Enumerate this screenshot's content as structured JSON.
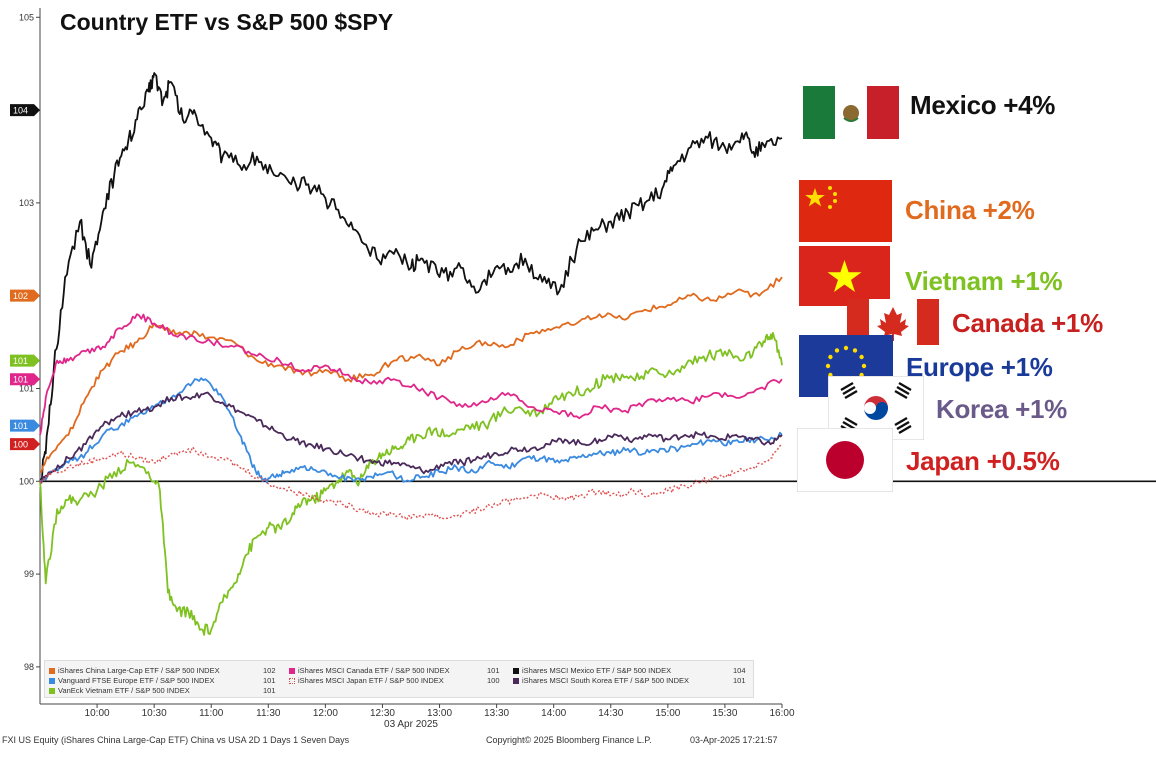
{
  "chart_data": {
    "type": "line",
    "title": "Country ETF vs S&P 500 $SPY",
    "xlabel": "03 Apr 2025",
    "ylabel": "",
    "x_ticks": [
      "10:00",
      "10:30",
      "11:00",
      "11:30",
      "12:00",
      "12:30",
      "13:00",
      "13:30",
      "14:00",
      "14:30",
      "15:00",
      "15:30",
      "16:00"
    ],
    "y_ticks": [
      "98",
      "99",
      "100",
      "101",
      "102",
      "103",
      "104",
      "105"
    ],
    "xlim": [
      9.5,
      16.0
    ],
    "ylim": [
      97.6,
      105.1
    ],
    "baseline": 100,
    "series": [
      {
        "name": "iShares MSCI Mexico ETF / S&P 500 INDEX",
        "value_label": "104",
        "color": "#111111",
        "dashed": false,
        "x": [
          9.5,
          9.55,
          9.62,
          9.72,
          9.85,
          9.95,
          10.05,
          10.15,
          10.25,
          10.35,
          10.45,
          10.5,
          10.58,
          10.65,
          10.75,
          10.85,
          11.0,
          11.1,
          11.25,
          11.4,
          11.55,
          11.7,
          11.85,
          12.0,
          12.15,
          12.3,
          12.45,
          12.6,
          12.75,
          12.85,
          13.0,
          13.15,
          13.3,
          13.45,
          13.6,
          13.75,
          13.9,
          14.05,
          14.2,
          14.35,
          14.5,
          14.65,
          14.8,
          14.95,
          15.05,
          15.2,
          15.35,
          15.5,
          15.65,
          15.75,
          15.85,
          16.0
        ],
        "y": [
          100.0,
          100.3,
          101.2,
          102.2,
          102.8,
          102.3,
          102.9,
          103.3,
          103.6,
          103.9,
          104.2,
          104.4,
          104.1,
          104.3,
          103.9,
          104.0,
          103.7,
          103.5,
          103.4,
          103.5,
          103.3,
          103.2,
          103.2,
          103.05,
          102.85,
          102.65,
          102.4,
          102.45,
          102.3,
          102.4,
          102.2,
          102.3,
          102.1,
          102.2,
          102.3,
          102.4,
          102.15,
          102.05,
          102.5,
          102.7,
          102.8,
          102.9,
          103.0,
          103.15,
          103.4,
          103.6,
          103.7,
          103.6,
          103.75,
          103.55,
          103.6,
          103.7
        ]
      },
      {
        "name": "iShares China Large-Cap ETF / S&P 500 INDEX",
        "value_label": "102",
        "color": "#e06a1d",
        "dashed": false,
        "x": [
          9.5,
          9.6,
          9.75,
          9.9,
          10.05,
          10.2,
          10.35,
          10.5,
          10.65,
          10.8,
          11.0,
          11.2,
          11.4,
          11.6,
          11.8,
          12.0,
          12.2,
          12.4,
          12.6,
          12.8,
          13.0,
          13.2,
          13.4,
          13.6,
          13.8,
          14.0,
          14.2,
          14.4,
          14.6,
          14.8,
          15.0,
          15.2,
          15.4,
          15.6,
          15.8,
          16.0
        ],
        "y": [
          100.1,
          100.3,
          100.5,
          100.9,
          101.2,
          101.4,
          101.5,
          101.7,
          101.6,
          101.6,
          101.55,
          101.5,
          101.3,
          101.25,
          101.15,
          101.2,
          101.1,
          101.15,
          101.3,
          101.35,
          101.25,
          101.45,
          101.5,
          101.45,
          101.6,
          101.65,
          101.7,
          101.8,
          101.75,
          101.85,
          101.9,
          102.0,
          101.95,
          102.05,
          102.0,
          102.2
        ]
      },
      {
        "name": "VanEck Vietnam ETF / S&P 500 INDEX",
        "value_label": "101",
        "color": "#7ec120",
        "dashed": false,
        "x": [
          9.5,
          9.55,
          9.65,
          9.75,
          9.85,
          10.0,
          10.15,
          10.3,
          10.45,
          10.55,
          10.62,
          10.7,
          10.8,
          10.9,
          11.0,
          11.1,
          11.2,
          11.3,
          11.4,
          11.5,
          11.6,
          11.7,
          11.8,
          11.9,
          12.0,
          12.1,
          12.2,
          12.3,
          12.4,
          12.5,
          12.6,
          12.7,
          12.8,
          12.95,
          13.1,
          13.25,
          13.4,
          13.55,
          13.7,
          13.85,
          14.0,
          14.15,
          14.3,
          14.45,
          14.6,
          14.75,
          14.9,
          15.05,
          15.2,
          15.35,
          15.5,
          15.65,
          15.75,
          15.85,
          15.92,
          16.0
        ],
        "y": [
          100.0,
          98.9,
          99.7,
          99.8,
          99.8,
          99.9,
          100.1,
          100.2,
          100.1,
          99.9,
          98.8,
          98.6,
          98.6,
          98.4,
          98.4,
          98.7,
          98.9,
          99.2,
          99.4,
          99.5,
          99.5,
          99.6,
          99.8,
          99.8,
          99.9,
          100.0,
          100.1,
          100.0,
          100.2,
          100.3,
          100.35,
          100.4,
          100.5,
          100.55,
          100.5,
          100.6,
          100.6,
          100.75,
          100.8,
          100.7,
          100.9,
          100.95,
          101.0,
          101.1,
          101.15,
          101.1,
          101.2,
          101.15,
          101.3,
          101.35,
          101.4,
          101.3,
          101.4,
          101.5,
          101.6,
          101.25
        ]
      },
      {
        "name": "iShares MSCI Canada ETF / S&P 500 INDEX",
        "value_label": "101",
        "color": "#e0268a",
        "dashed": false,
        "x": [
          9.5,
          9.55,
          9.65,
          9.75,
          9.9,
          10.05,
          10.2,
          10.35,
          10.5,
          10.65,
          10.8,
          11.0,
          11.2,
          11.4,
          11.6,
          11.8,
          12.0,
          12.2,
          12.4,
          12.6,
          12.8,
          13.0,
          13.2,
          13.4,
          13.6,
          13.8,
          14.0,
          14.2,
          14.4,
          14.6,
          14.8,
          15.0,
          15.2,
          15.4,
          15.6,
          15.8,
          16.0
        ],
        "y": [
          100.5,
          100.9,
          101.3,
          101.3,
          101.4,
          101.45,
          101.65,
          101.8,
          101.7,
          101.6,
          101.55,
          101.5,
          101.45,
          101.35,
          101.3,
          101.2,
          101.25,
          101.15,
          101.05,
          101.1,
          101.0,
          100.9,
          100.8,
          100.85,
          100.95,
          100.8,
          100.75,
          100.7,
          100.8,
          100.75,
          100.85,
          100.9,
          100.85,
          100.95,
          100.9,
          101.0,
          101.1
        ]
      },
      {
        "name": "Vanguard FTSE Europe ETF / S&P 500 INDEX",
        "value_label": "101",
        "color": "#3a8ae0",
        "dashed": false,
        "x": [
          9.5,
          9.6,
          9.75,
          9.9,
          10.05,
          10.2,
          10.35,
          10.5,
          10.65,
          10.8,
          10.95,
          11.1,
          11.25,
          11.35,
          11.45,
          11.55,
          11.65,
          11.8,
          11.95,
          12.1,
          12.25,
          12.4,
          12.55,
          12.7,
          12.85,
          13.0,
          13.15,
          13.3,
          13.45,
          13.6,
          13.75,
          13.9,
          14.05,
          14.2,
          14.35,
          14.5,
          14.65,
          14.8,
          14.95,
          15.1,
          15.25,
          15.4,
          15.55,
          15.7,
          15.85,
          16.0
        ],
        "y": [
          100.0,
          100.1,
          100.2,
          100.3,
          100.5,
          100.6,
          100.7,
          100.8,
          100.9,
          101.05,
          101.1,
          100.9,
          100.5,
          100.2,
          100.0,
          100.05,
          100.1,
          100.15,
          100.1,
          100.05,
          100.0,
          100.05,
          100.1,
          100.0,
          100.05,
          100.1,
          100.15,
          100.1,
          100.2,
          100.15,
          100.25,
          100.25,
          100.2,
          100.25,
          100.3,
          100.3,
          100.35,
          100.3,
          100.35,
          100.35,
          100.4,
          100.45,
          100.4,
          100.45,
          100.45,
          100.5
        ]
      },
      {
        "name": "iShares MSCI South Korea ETF / S&P 500 INDEX",
        "value_label": "101",
        "color": "#4a2a5a",
        "dashed": false,
        "x": [
          9.5,
          9.6,
          9.75,
          9.9,
          10.05,
          10.2,
          10.35,
          10.5,
          10.65,
          10.8,
          10.95,
          11.1,
          11.25,
          11.4,
          11.55,
          11.7,
          11.85,
          12.0,
          12.15,
          12.3,
          12.45,
          12.6,
          12.75,
          12.9,
          13.05,
          13.2,
          13.35,
          13.5,
          13.65,
          13.8,
          13.95,
          14.1,
          14.25,
          14.4,
          14.55,
          14.7,
          14.85,
          15.0,
          15.15,
          15.3,
          15.45,
          15.6,
          15.75,
          15.9,
          16.0
        ],
        "y": [
          100.0,
          100.1,
          100.25,
          100.4,
          100.6,
          100.7,
          100.75,
          100.8,
          100.9,
          100.9,
          100.95,
          100.85,
          100.75,
          100.65,
          100.55,
          100.45,
          100.4,
          100.35,
          100.3,
          100.25,
          100.2,
          100.2,
          100.15,
          100.1,
          100.2,
          100.2,
          100.25,
          100.3,
          100.35,
          100.35,
          100.4,
          100.45,
          100.4,
          100.45,
          100.5,
          100.45,
          100.5,
          100.45,
          100.5,
          100.5,
          100.45,
          100.5,
          100.45,
          100.4,
          100.5
        ]
      },
      {
        "name": "iShares MSCI Japan ETF / S&P 500 INDEX",
        "value_label": "100",
        "color": "#e05050",
        "dashed": true,
        "x": [
          9.5,
          9.6,
          9.75,
          9.9,
          10.05,
          10.2,
          10.35,
          10.5,
          10.65,
          10.8,
          10.95,
          11.1,
          11.25,
          11.4,
          11.55,
          11.7,
          11.85,
          12.0,
          12.15,
          12.3,
          12.45,
          12.6,
          12.75,
          12.9,
          13.05,
          13.2,
          13.35,
          13.5,
          13.65,
          13.8,
          13.95,
          14.1,
          14.25,
          14.4,
          14.55,
          14.7,
          14.85,
          15.0,
          15.15,
          15.3,
          15.45,
          15.6,
          15.75,
          15.9,
          16.0
        ],
        "y": [
          100.0,
          100.1,
          100.15,
          100.2,
          100.25,
          100.3,
          100.25,
          100.2,
          100.3,
          100.35,
          100.3,
          100.25,
          100.15,
          100.05,
          99.95,
          99.9,
          99.85,
          99.8,
          99.75,
          99.7,
          99.65,
          99.65,
          99.6,
          99.65,
          99.6,
          99.65,
          99.7,
          99.75,
          99.8,
          99.85,
          99.85,
          99.8,
          99.85,
          99.9,
          99.85,
          99.9,
          99.85,
          99.9,
          99.95,
          100.0,
          100.05,
          100.1,
          100.15,
          100.25,
          100.4
        ]
      }
    ]
  },
  "annotations": [
    {
      "label": "Mexico +4%",
      "color": "#111111"
    },
    {
      "label": "China +2%",
      "color": "#e06a1d"
    },
    {
      "label": "Vietnam +1%",
      "color": "#7ec120"
    },
    {
      "label": "Canada +1%",
      "color": "#c8201e"
    },
    {
      "label": "Europe +1%",
      "color": "#1a3a9a"
    },
    {
      "label": "Korea +1%",
      "color": "#6a5a8a"
    },
    {
      "label": "Japan +0.5%",
      "color": "#d02020"
    }
  ],
  "legend": [
    {
      "label": "iShares China Large-Cap ETF / S&P 500 INDEX",
      "value": "102",
      "color": "#e06a1d",
      "dashed": false
    },
    {
      "label": "Vanguard FTSE Europe ETF / S&P 500 INDEX",
      "value": "101",
      "color": "#3a8ae0",
      "dashed": false
    },
    {
      "label": "VanEck Vietnam ETF / S&P 500 INDEX",
      "value": "101",
      "color": "#7ec120",
      "dashed": false
    },
    {
      "label": "iShares MSCI Canada ETF / S&P 500 INDEX",
      "value": "101",
      "color": "#e0268a",
      "dashed": false
    },
    {
      "label": "iShares MSCI Japan ETF / S&P 500 INDEX",
      "value": "100",
      "color": "#e05050",
      "dashed": true
    },
    {
      "label": "iShares MSCI Mexico ETF / S&P 500 INDEX",
      "value": "104",
      "color": "#111111",
      "dashed": false
    },
    {
      "label": "iShares MSCI South Korea ETF / S&P 500 INDEX",
      "value": "101",
      "color": "#4a2a5a",
      "dashed": false
    }
  ],
  "axis_tags": [
    {
      "label": "104",
      "color": "#111111",
      "value": 104
    },
    {
      "label": "102",
      "color": "#e06a1d",
      "value": 102
    },
    {
      "label": "101",
      "color": "#7ec120",
      "value": 101.3
    },
    {
      "label": "101",
      "color": "#e0268a",
      "value": 101.1
    },
    {
      "label": "101",
      "color": "#3a8ae0",
      "value": 100.6
    },
    {
      "label": "100",
      "color": "#d02020",
      "value": 100.4
    }
  ],
  "footer": {
    "left": "FXI US Equity (iShares China Large-Cap ETF) China vs USA 2D 1 Days 1 Seven Days",
    "copyright": "Copyright© 2025 Bloomberg Finance L.P.",
    "timestamp": "03-Apr-2025 17:21:57"
  }
}
